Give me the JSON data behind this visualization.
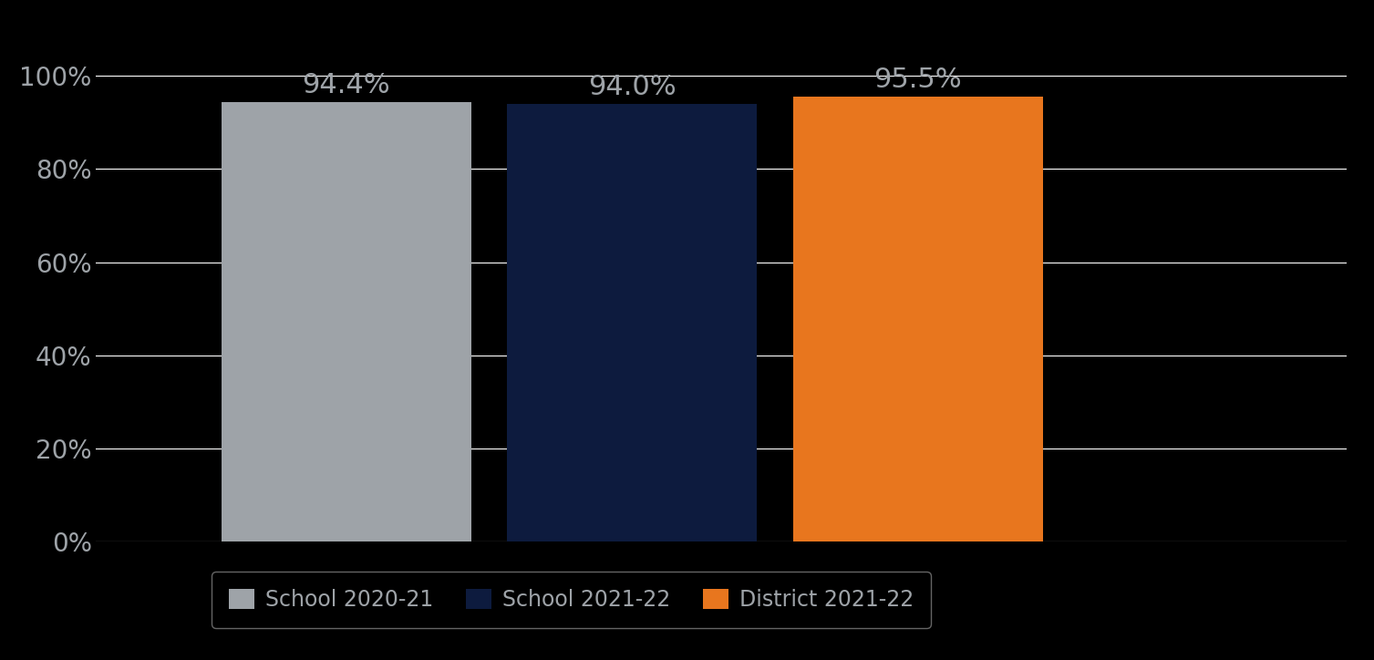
{
  "categories": [
    "School 2020-21",
    "School 2021-22",
    "District 2021-22"
  ],
  "values": [
    0.944,
    0.94,
    0.955
  ],
  "bar_labels": [
    "94.4%",
    "94.0%",
    "95.5%"
  ],
  "bar_colors": [
    "#9EA3A8",
    "#0D1B3E",
    "#E8761E"
  ],
  "background_color": "#000000",
  "text_color": "#9EA3A8",
  "grid_color": "#FFFFFF",
  "ylim": [
    0,
    1.05
  ],
  "yticks": [
    0.0,
    0.2,
    0.4,
    0.6,
    0.8,
    1.0
  ],
  "ytick_labels": [
    "0%",
    "20%",
    "40%",
    "60%",
    "80%",
    "100%"
  ],
  "bar_width": 0.28,
  "x_positions": [
    0.28,
    0.6,
    0.92
  ],
  "xlim": [
    0.0,
    1.4
  ],
  "legend_labels": [
    "School 2020-21",
    "School 2021-22",
    "District 2021-22"
  ],
  "figsize": [
    15.07,
    7.24
  ],
  "dpi": 100,
  "annotation_fontsize": 22,
  "tick_fontsize": 20,
  "legend_fontsize": 17
}
